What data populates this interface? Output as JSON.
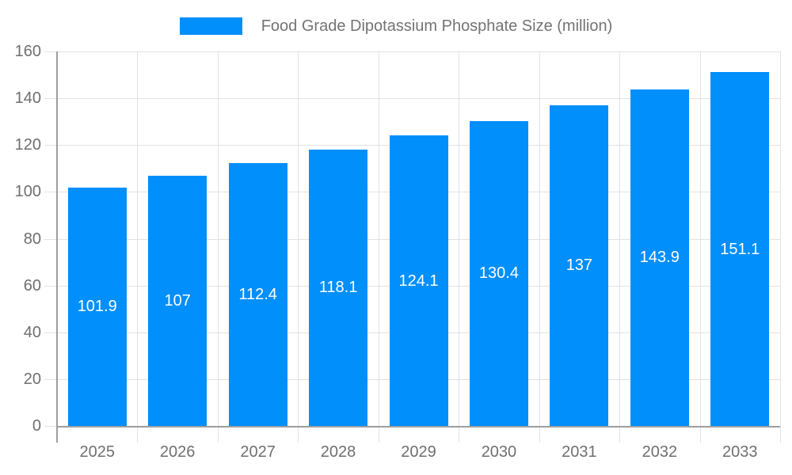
{
  "chart_data": {
    "type": "bar",
    "title": "Food Grade Dipotassium Phosphate Size (million)",
    "categories": [
      "2025",
      "2026",
      "2027",
      "2028",
      "2029",
      "2030",
      "2031",
      "2032",
      "2033"
    ],
    "values": [
      101.9,
      107,
      112.4,
      118.1,
      124.1,
      130.4,
      137,
      143.9,
      151.1
    ],
    "xlabel": "",
    "ylabel": "",
    "ylim": [
      0,
      160
    ],
    "yticks": [
      0,
      20,
      40,
      60,
      80,
      100,
      120,
      140,
      160
    ],
    "grid": true,
    "legend_position": "top",
    "bar_color": "#008FFB",
    "value_label_color": "#ffffff",
    "legend_text_color": "#737373",
    "axis_label_color": "#6f6f6f",
    "axis_line_color": "#9e9e9e",
    "grid_color": "#e2e2e2",
    "background_color": "#ffffff"
  }
}
